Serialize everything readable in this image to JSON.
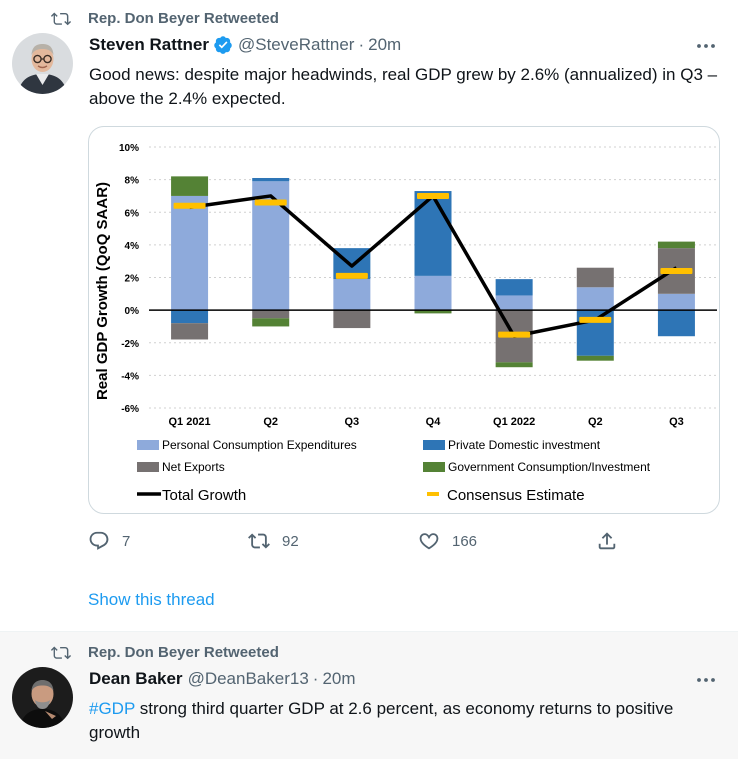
{
  "tweet1": {
    "retweet_text": "Rep. Don Beyer Retweeted",
    "author_name": "Steven Rattner",
    "author_handle": "@SteveRattner",
    "separator": "·",
    "time": "20m",
    "text": "Good news: despite major headwinds, real GDP grew by 2.6% (annualized) in Q3 – above the 2.4% expected.",
    "actions": {
      "replies": "7",
      "retweets": "92",
      "likes": "166"
    },
    "show_thread": "Show this thread",
    "icons": {
      "retweet": "retweet-icon",
      "verified": "verified-badge-icon",
      "more": "more-icon",
      "reply": "reply-icon",
      "like": "heart-icon",
      "share": "share-icon"
    },
    "colors": {
      "link": "#1d9bf0",
      "secondary_text": "#536471",
      "verified": "#1d9bf0"
    }
  },
  "tweet2": {
    "retweet_text": "Rep. Don Beyer Retweeted",
    "author_name": "Dean Baker",
    "author_handle": "@DeanBaker13",
    "separator": "·",
    "time": "20m",
    "hashtag": "#GDP",
    "text": " strong third quarter GDP at 2.6 percent, as economy returns to positive growth"
  },
  "chart_data": {
    "type": "bar",
    "stacked": true,
    "ylabel": "Real GDP Growth (QoQ SAAR)",
    "ylim": [
      -6,
      10
    ],
    "yticks": [
      10,
      8,
      6,
      4,
      2,
      0,
      -2,
      -4,
      -6
    ],
    "ytick_labels": [
      "10%",
      "8%",
      "6%",
      "4%",
      "2%",
      "0%",
      "-2%",
      "-4%",
      "-6%"
    ],
    "grid": "horizontal dotted",
    "categories": [
      "Q1 2021",
      "Q2",
      "Q3",
      "Q4",
      "Q1 2022",
      "Q2",
      "Q3"
    ],
    "series": [
      {
        "name": "Personal Consumption Expenditures",
        "color": "#8eaadb",
        "values": [
          7.0,
          7.9,
          1.9,
          2.1,
          0.9,
          1.4,
          1.0
        ]
      },
      {
        "name": "Private Domestic investment",
        "color": "#2e75b6",
        "values": [
          -0.8,
          0.2,
          1.9,
          5.2,
          1.0,
          -2.8,
          -1.6
        ]
      },
      {
        "name": "Net Exports",
        "color": "#767171",
        "values": [
          -1.0,
          -0.5,
          -1.1,
          -0.0,
          -3.2,
          1.2,
          2.8
        ]
      },
      {
        "name": "Government Consumption/Investment",
        "color": "#548235",
        "values": [
          1.2,
          -0.5,
          0.0,
          -0.2,
          -0.3,
          -0.3,
          0.4
        ]
      }
    ],
    "total_growth": {
      "name": "Total Growth",
      "color": "#000000",
      "values": [
        6.3,
        7.0,
        2.7,
        7.0,
        -1.6,
        -0.6,
        2.6
      ]
    },
    "consensus_estimate": {
      "name": "Consensus Estimate",
      "color": "#ffc000",
      "values": [
        6.4,
        6.6,
        2.1,
        7.0,
        -1.5,
        -0.6,
        2.4
      ]
    },
    "legend": [
      "Personal Consumption Expenditures",
      "Private Domestic investment",
      "Net Exports",
      "Government Consumption/Investment",
      "Total Growth",
      "Consensus Estimate"
    ],
    "legend_placement": "bottom"
  }
}
